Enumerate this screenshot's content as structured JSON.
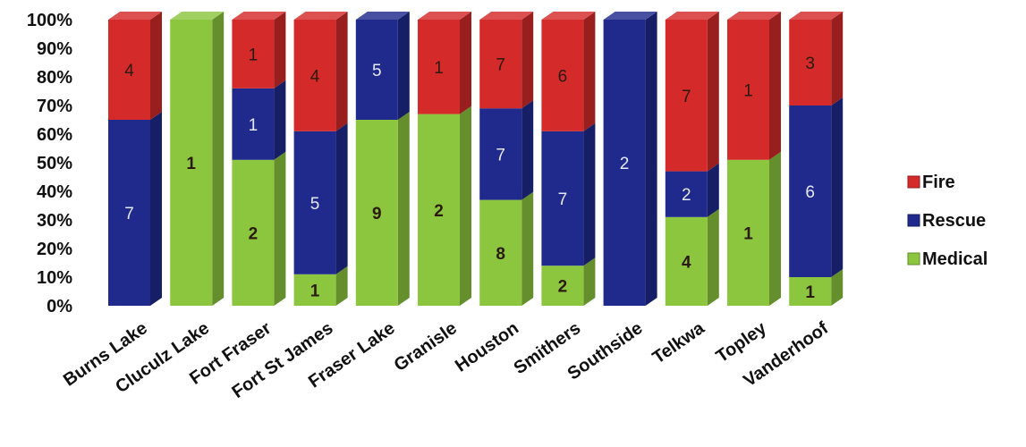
{
  "chart_data": {
    "type": "bar",
    "stacked": true,
    "percent": true,
    "categories": [
      "Burns Lake",
      "Cluculz Lake",
      "Fort Fraser",
      "Fort St James",
      "Fraser Lake",
      "Granisle",
      "Houston",
      "Smithers",
      "Southside",
      "Telkwa",
      "Topley",
      "Vanderhoof"
    ],
    "series": [
      {
        "name": "Medical",
        "color": "#8cc63f",
        "values": [
          0,
          1,
          2,
          1,
          9,
          2,
          8,
          2,
          0,
          4,
          1,
          1
        ],
        "labels": [
          "",
          "1",
          "2",
          "1",
          "9",
          "2",
          "8",
          "2",
          "",
          "4",
          "1",
          "1"
        ]
      },
      {
        "name": "Rescue",
        "color": "#1f2a8c",
        "values": [
          7,
          0,
          1,
          5,
          5,
          0,
          7,
          7,
          2,
          2,
          0,
          6
        ],
        "labels": [
          "7",
          "",
          "1",
          "5",
          "5",
          "",
          "7",
          "7",
          "2",
          "2",
          "",
          "6"
        ]
      },
      {
        "name": "Fire",
        "color": "#d42a2a",
        "values": [
          4,
          0,
          1,
          4,
          0,
          1,
          7,
          6,
          0,
          7,
          1,
          3
        ],
        "labels": [
          "4",
          "",
          "1",
          "4",
          "",
          "1",
          "7",
          "6",
          "",
          "7",
          "1",
          "3"
        ]
      }
    ],
    "percentages": {
      "Medical": [
        0,
        100,
        51,
        11,
        65,
        67,
        37,
        14,
        0,
        31,
        51,
        10
      ],
      "Rescue": [
        65,
        0,
        25,
        50,
        35,
        0,
        32,
        47,
        100,
        16,
        0,
        60
      ],
      "Fire": [
        35,
        0,
        24,
        39,
        0,
        33,
        31,
        39,
        0,
        53,
        49,
        30
      ]
    },
    "y_ticks": [
      "0%",
      "10%",
      "20%",
      "30%",
      "40%",
      "50%",
      "60%",
      "70%",
      "80%",
      "90%",
      "100%"
    ],
    "ylim": [
      0,
      100
    ],
    "legend": {
      "position": "right",
      "entries": [
        "Fire",
        "Rescue",
        "Medical"
      ]
    },
    "grid": false
  }
}
